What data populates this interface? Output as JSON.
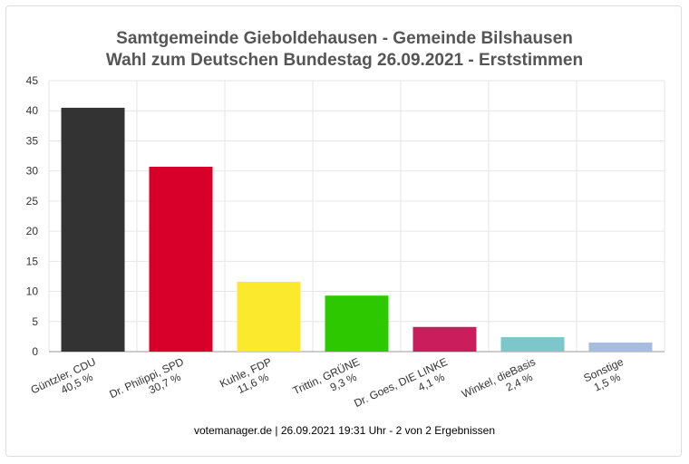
{
  "chart_data": {
    "type": "bar",
    "title": "Samtgemeinde Gieboldehausen - Gemeinde Bilshausen",
    "subtitle": "Wahl zum Deutschen Bundestag 26.09.2021  - Erststimmen",
    "ylim": [
      0,
      45
    ],
    "yticks": [
      0,
      5,
      10,
      15,
      20,
      25,
      30,
      35,
      40,
      45
    ],
    "grid": true,
    "categories": [
      {
        "name": "Güntzler, CDU",
        "pct": "40,5 %",
        "value": 40.5,
        "color": "#333333"
      },
      {
        "name": "Dr. Philippi, SPD",
        "pct": "30,7 %",
        "value": 30.7,
        "color": "#d8002b"
      },
      {
        "name": "Kuhle, FDP",
        "pct": "11,6 %",
        "value": 11.6,
        "color": "#fbe92d"
      },
      {
        "name": "Trittin, GRÜNE",
        "pct": "9,3 %",
        "value": 9.3,
        "color": "#2ec800"
      },
      {
        "name": "Dr. Goes, DIE LINKE",
        "pct": "4,1 %",
        "value": 4.1,
        "color": "#c91d5c"
      },
      {
        "name": "Winkel, dieBasis",
        "pct": "2,4 %",
        "value": 2.4,
        "color": "#7dc6ca"
      },
      {
        "name": "Sonstige",
        "pct": "1,5 %",
        "value": 1.5,
        "color": "#a7bde0"
      }
    ]
  },
  "footer": "votemanager.de | 26.09.2021 19:31 Uhr - 2 von 2 Ergebnissen"
}
